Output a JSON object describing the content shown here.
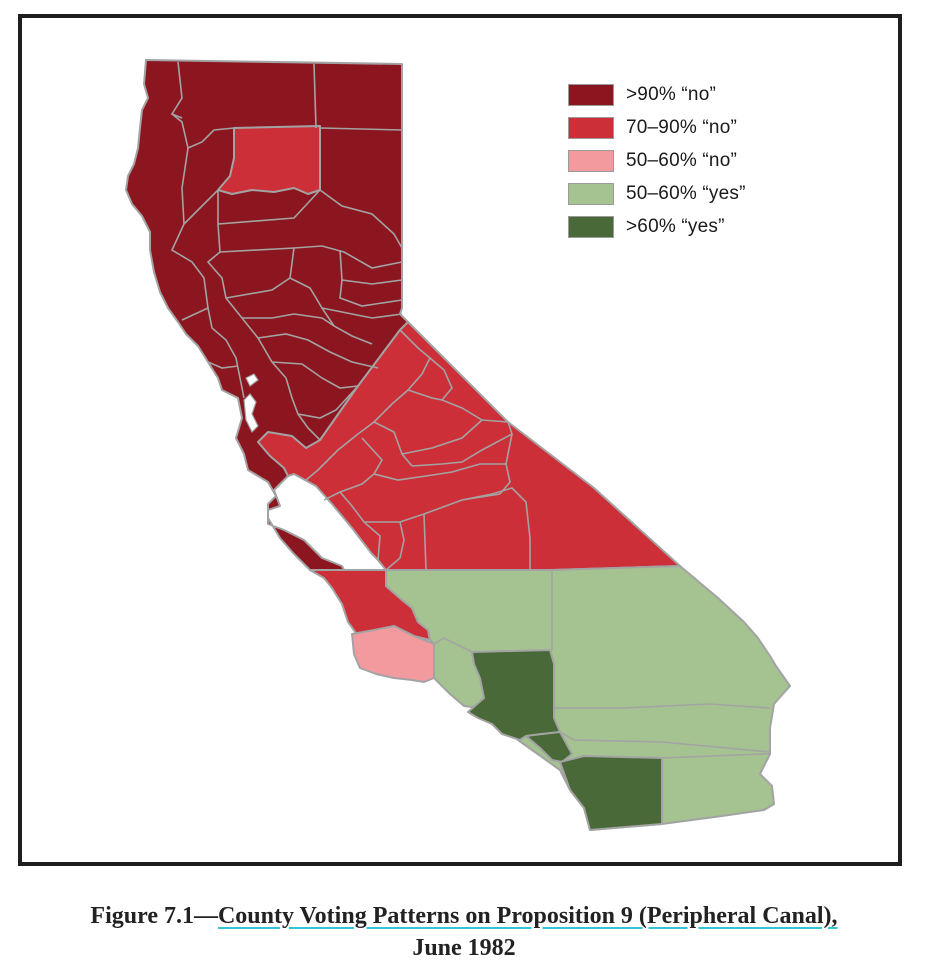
{
  "legend": {
    "items": [
      {
        "label": ">90% “no”",
        "color": "#8b1620"
      },
      {
        "label": "70–90% “no”",
        "color": "#cc2f38"
      },
      {
        "label": "50–60% “no”",
        "color": "#f29a9d"
      },
      {
        "label": "50–60% “yes”",
        "color": "#a5c291"
      },
      {
        "label": ">60% “yes”",
        "color": "#4a6938"
      }
    ]
  },
  "caption": {
    "prefix": "Figure 7.1—",
    "title": "County Voting Patterns on Proposition 9 (Peripheral Canal),",
    "date": "June 1982"
  },
  "colors": {
    "border": "#a3a3a3",
    "frame": "#1f1f1f",
    "link_underline": "#31c6d4"
  }
}
